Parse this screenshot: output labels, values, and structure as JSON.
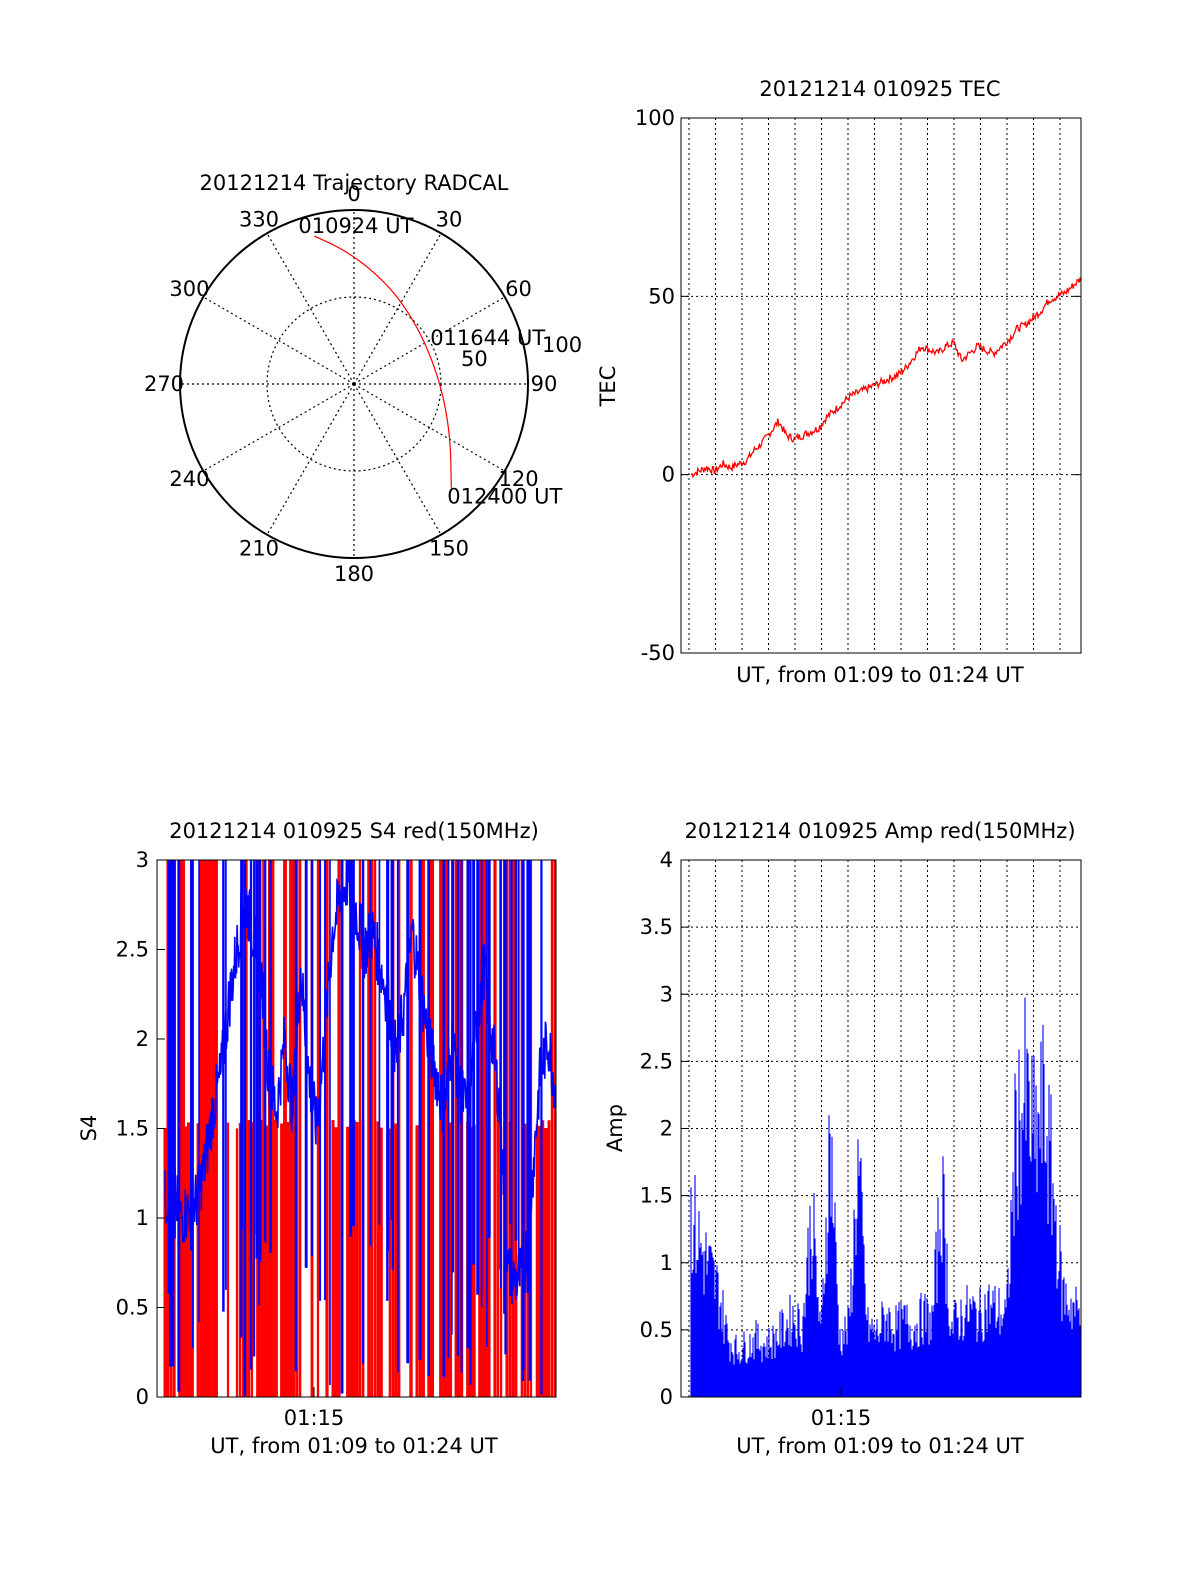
{
  "colors": {
    "red": "#ff0000",
    "blue": "#0000ff",
    "axis": "#000000"
  },
  "chart_data": [
    {
      "id": "trajectory",
      "type": "polar",
      "title": "20121214 Trajectory RADCAL",
      "azimuth_labels": [
        "0",
        "30",
        "60",
        "90",
        "120",
        "150",
        "180",
        "210",
        "240",
        "270",
        "300",
        "330"
      ],
      "radius_labels": [
        "50",
        "100"
      ],
      "radius_range": [
        0,
        100
      ],
      "grid": true,
      "trajectory": {
        "points": [
          {
            "az": 345,
            "r": 88
          },
          {
            "az": 355,
            "r": 78
          },
          {
            "az": 8,
            "r": 67
          },
          {
            "az": 25,
            "r": 57
          },
          {
            "az": 48,
            "r": 49
          },
          {
            "az": 73,
            "r": 47
          },
          {
            "az": 98,
            "r": 52
          },
          {
            "az": 120,
            "r": 64
          },
          {
            "az": 137,
            "r": 82
          }
        ],
        "labels": [
          {
            "text": "010924 UT",
            "az": 345,
            "r": 88
          },
          {
            "text": "011644 UT",
            "az": 73,
            "r": 47
          },
          {
            "text": "012400 UT",
            "az": 137,
            "r": 82
          }
        ]
      }
    },
    {
      "id": "tec",
      "type": "line",
      "title": "20121214 010925 TEC",
      "xlabel": "UT, from 01:09 to 01:24 UT",
      "ylabel": "TEC",
      "ylim": [
        -50,
        100
      ],
      "yticks": [
        "-50",
        "0",
        "50",
        "100"
      ],
      "grid": true,
      "series": [
        {
          "values": [
            0,
            1,
            2,
            1,
            3,
            2,
            3,
            4,
            7,
            9,
            12,
            15,
            11,
            10,
            11,
            12,
            13,
            16,
            18,
            20,
            22,
            23,
            24,
            25,
            26,
            27,
            28,
            30,
            33,
            36,
            35,
            34,
            36,
            37,
            32,
            34,
            36,
            35,
            34,
            36,
            38,
            41,
            42,
            44,
            46,
            49,
            50,
            51,
            53,
            55
          ]
        }
      ]
    },
    {
      "id": "s4",
      "type": "line",
      "title": "20121214 010925 S4 red(150MHz)",
      "xlabel": "UT, from 01:09 to 01:24 UT",
      "ylabel": "S4",
      "xtick_label": "01:15",
      "ylim": [
        0,
        3
      ],
      "yticks": [
        "0",
        "0.5",
        "1",
        "1.5",
        "2",
        "2.5",
        "3"
      ],
      "grid": true,
      "series": [
        {
          "values": [
            1.1,
            1.15,
            1.0,
            1.05,
            1.1,
            1.3,
            1.6,
            1.8,
            2.2,
            2.5,
            2.8,
            2.6,
            2.4,
            1.8,
            1.6,
            2.0,
            1.6,
            2.4,
            1.8,
            1.5,
            2.0,
            2.6,
            2.8,
            2.9,
            2.7,
            2.5,
            2.6,
            2.4,
            2.2,
            1.9,
            2.2,
            2.6,
            2.3,
            2.0,
            1.8,
            1.6,
            2.0,
            1.7,
            1.6,
            2.1,
            2.4,
            2.0,
            1.6,
            0.7,
            0.65,
            0.7,
            1.2,
            1.8,
            2.0,
            1.7
          ]
        }
      ]
    },
    {
      "id": "amp",
      "type": "bar",
      "title": "20121214 010925 Amp red(150MHz)",
      "xlabel": "UT, from 01:09 to 01:24 UT",
      "ylabel": "Amp",
      "xtick_label": "01:15",
      "ylim": [
        0,
        4
      ],
      "yticks": [
        "0",
        "0.5",
        "1",
        "1.5",
        "2",
        "2.5",
        "3",
        "3.5",
        "4"
      ],
      "grid": true,
      "series": [
        {
          "values": [
            1.6,
            1.3,
            1.1,
            0.9,
            0.5,
            0.4,
            0.45,
            0.5,
            0.45,
            0.5,
            0.6,
            0.7,
            0.6,
            1.6,
            0.5,
            2.3,
            0.5,
            0.6,
            2.0,
            0.6,
            0.55,
            0.7,
            0.6,
            0.65,
            0.6,
            0.7,
            0.65,
            1.8,
            0.6,
            0.7,
            0.75,
            0.7,
            0.8,
            0.75,
            0.7,
            2.3,
            2.6,
            2.2,
            2.5,
            1.8,
            0.9,
            0.8,
            0.7
          ]
        }
      ]
    }
  ]
}
